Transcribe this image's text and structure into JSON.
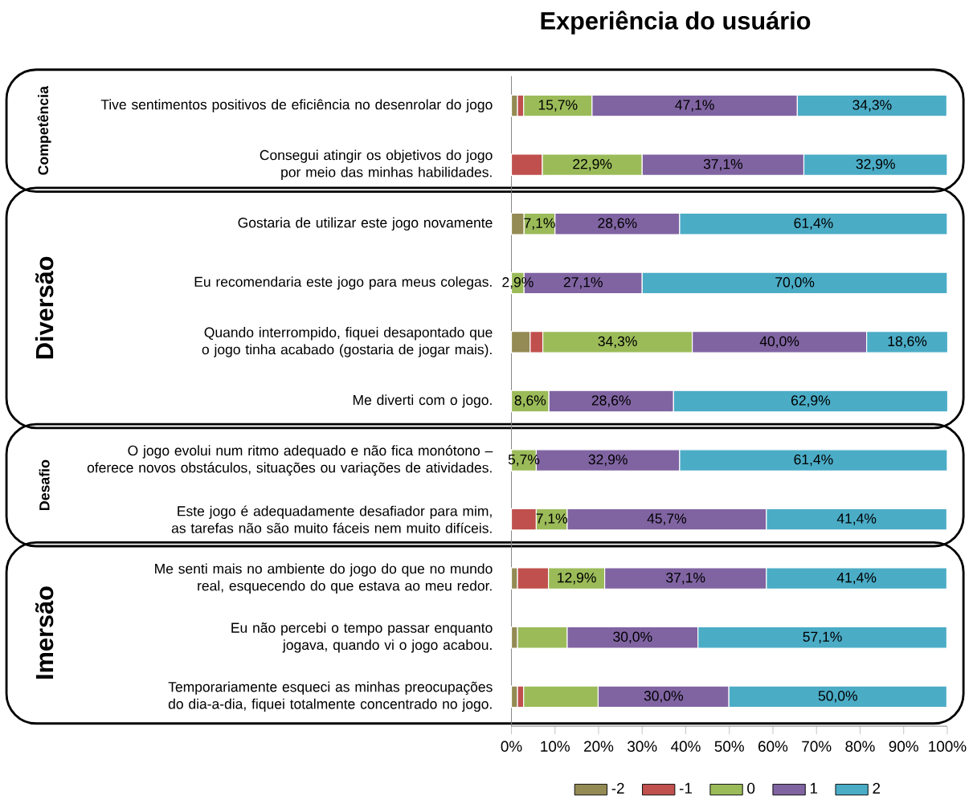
{
  "chart_data": {
    "type": "bar",
    "orientation": "horizontal",
    "stacked": true,
    "title": "Experiência do usuário",
    "categories": [
      "Tive sentimentos positivos de eficiência no desenrolar do jogo",
      "Consegui atingir os objetivos do jogo por meio das minhas habilidades.",
      "Gostaria de utilizar este jogo novamente",
      "Eu recomendaria este jogo para meus colegas.",
      "Quando interrompido, fiquei desapontado que o jogo tinha acabado (gostaria de jogar mais).",
      "Me diverti com o jogo.",
      "O jogo evolui num ritmo adequado e não fica monótono – oferece novos obstáculos, situações ou variações de atividades.",
      "Este jogo é adequadamente desafiador para mim, as tarefas não são muito fáceis nem muito difíceis.",
      "Me senti mais no ambiente do jogo do que no mundo real, esquecendo do que estava ao meu redor.",
      "Eu não percebi o tempo passar enquanto jogava, quando vi o jogo acabou.",
      "Temporariamente esqueci as minhas preocupações do dia-a-dia, fiquei totalmente concentrado no jogo."
    ],
    "series": [
      {
        "name": "-2",
        "color": "#948a54",
        "values": [
          1.4,
          null,
          2.9,
          null,
          4.3,
          null,
          null,
          null,
          1.4,
          1.4,
          1.4
        ],
        "value_labels": [
          null,
          null,
          null,
          null,
          null,
          null,
          null,
          null,
          null,
          null,
          null
        ]
      },
      {
        "name": "-1",
        "color": "#c0504d",
        "values": [
          1.4,
          7.1,
          null,
          null,
          2.9,
          null,
          null,
          5.7,
          7.1,
          null,
          1.4
        ],
        "value_labels": [
          null,
          null,
          null,
          null,
          null,
          null,
          null,
          null,
          null,
          null,
          null
        ]
      },
      {
        "name": "0",
        "color": "#9bbb59",
        "values": [
          15.7,
          22.9,
          7.1,
          2.9,
          34.3,
          8.6,
          5.7,
          7.1,
          12.9,
          11.4,
          17.1
        ],
        "value_labels": [
          "15,7%",
          "22,9%",
          "7,1%",
          "2,9%",
          "34,3%",
          "8,6%",
          "5,7%",
          "7,1%",
          "12,9%",
          null,
          null
        ]
      },
      {
        "name": "1",
        "color": "#8064a2",
        "values": [
          47.1,
          37.1,
          28.6,
          27.1,
          40.0,
          28.6,
          32.9,
          45.7,
          37.1,
          30.0,
          30.0
        ],
        "value_labels": [
          "47,1%",
          "37,1%",
          "28,6%",
          "27,1%",
          "40,0%",
          "28,6%",
          "32,9%",
          "45,7%",
          "37,1%",
          "30,0%",
          "30,0%"
        ]
      },
      {
        "name": "2",
        "color": "#4bacc6",
        "values": [
          34.3,
          32.9,
          61.4,
          70.0,
          18.6,
          62.9,
          61.4,
          41.4,
          41.4,
          57.1,
          50.0
        ],
        "value_labels": [
          "34,3%",
          "32,9%",
          "61,4%",
          "70,0%",
          "18,6%",
          "62,9%",
          "61,4%",
          "41,4%",
          "41,4%",
          "57,1%",
          "50,0%"
        ]
      }
    ],
    "xlim": [
      0,
      100
    ],
    "xticks": [
      {
        "value": 0,
        "label": "0%"
      },
      {
        "value": 10,
        "label": "10%"
      },
      {
        "value": 20,
        "label": "20%"
      },
      {
        "value": 30,
        "label": "30%"
      },
      {
        "value": 40,
        "label": "40%"
      },
      {
        "value": 50,
        "label": "50%"
      },
      {
        "value": 60,
        "label": "60%"
      },
      {
        "value": 70,
        "label": "70%"
      },
      {
        "value": 80,
        "label": "80%"
      },
      {
        "value": 90,
        "label": "90%"
      },
      {
        "value": 100,
        "label": "100%"
      }
    ],
    "legend": "bottom",
    "annotations": [
      "Competência",
      "Diversão",
      "Desafio",
      "Imersão"
    ]
  }
}
